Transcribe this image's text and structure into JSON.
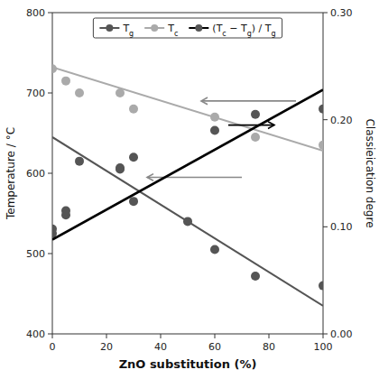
{
  "chart_data": {
    "type": "scatter",
    "xlabel": "ZnO substitution (%)",
    "ylabel": "Temperature / °C",
    "y2label": "Classieication degre",
    "xlim": [
      0,
      100
    ],
    "ylim": [
      400,
      800
    ],
    "y2lim": [
      0.0,
      0.3
    ],
    "xticks": [
      0,
      20,
      40,
      60,
      80,
      100
    ],
    "yticks": [
      400,
      500,
      600,
      700,
      800
    ],
    "y2ticks": [
      {
        "value": 0.0,
        "label": "0.00"
      },
      {
        "value": 0.1,
        "label": "0.10"
      },
      {
        "value": 0.2,
        "label": "0.20"
      },
      {
        "value": 0.3,
        "label": "0.30"
      }
    ],
    "grid": false,
    "legend": "top",
    "series": [
      {
        "name": "Tg",
        "color": "#555555",
        "marker": "circle",
        "x": [
          0,
          5,
          10,
          25,
          30,
          50,
          60,
          75,
          100
        ],
        "values": [
          525,
          548,
          615,
          605,
          565,
          540,
          505,
          472,
          460
        ],
        "trend": {
          "x": [
            0,
            100
          ],
          "values": [
            645,
            435
          ]
        }
      },
      {
        "name": "Tc",
        "color": "#aaaaaa",
        "marker": "circle",
        "x": [
          0,
          5,
          10,
          25,
          30,
          60,
          75,
          100
        ],
        "values": [
          730,
          715,
          700,
          700,
          680,
          670,
          645,
          635
        ],
        "trend": {
          "x": [
            0,
            100
          ],
          "values": [
            732,
            628
          ]
        }
      },
      {
        "name": "(Tc − Tg) / Tg",
        "color": "#555555",
        "marker": "circle",
        "axis": "y2",
        "x": [
          0,
          5,
          25,
          30,
          60,
          75,
          100
        ],
        "values": [
          0.098,
          0.115,
          0.155,
          0.165,
          0.19,
          0.205,
          0.21
        ],
        "trend": {
          "x": [
            0,
            100
          ],
          "values": [
            0.088,
            0.228
          ],
          "color": "#000000"
        }
      }
    ],
    "annotations": [
      {
        "type": "arrow",
        "x": [
          90,
          55
        ],
        "y": [
          690,
          690
        ],
        "color": "#888888"
      },
      {
        "type": "arrow",
        "x": [
          70,
          35
        ],
        "y": [
          595,
          595
        ],
        "color": "#888888"
      },
      {
        "type": "arrow",
        "x": [
          65,
          82
        ],
        "y": [
          0.195,
          0.195
        ],
        "color": "#000000",
        "axis": "y2"
      }
    ]
  }
}
